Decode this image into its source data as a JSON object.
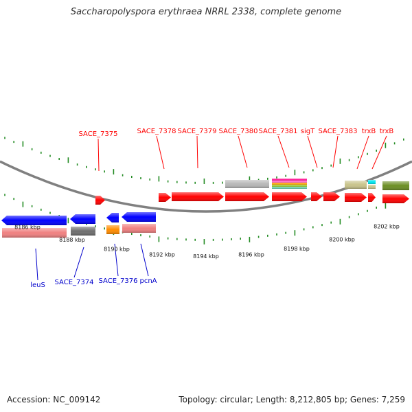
{
  "title": "Saccharopolyspora erythraea NRRL 2338, complete genome",
  "accession": "Accession: NC_009142",
  "summary": "Topology: circular; Length: 8,212,805 bp; Genes: 7,259",
  "colors": {
    "forward_gene": "#ff0000",
    "reverse_gene": "#0000ff",
    "forward_label": "#ff0000",
    "reverse_label": "#0000cc",
    "backbone": "#808080",
    "tick": "#228b22"
  },
  "scale": {
    "unit": "kbp",
    "tick_labels": [
      "8186 kbp",
      "8188 kbp",
      "8190 kbp",
      "8192 kbp",
      "8194 kbp",
      "8196 kbp",
      "8198 kbp",
      "8200 kbp",
      "8202 kbp"
    ]
  },
  "labels_above": [
    "SACE_7375",
    "SACE_7378",
    "SACE_7379",
    "SACE_7380",
    "SACE_7381",
    "sigT",
    "SACE_7383",
    "trxB",
    "trxB"
  ],
  "labels_below": [
    "leuS",
    "SACE_7374",
    "SACE_7376",
    "pcnA"
  ]
}
